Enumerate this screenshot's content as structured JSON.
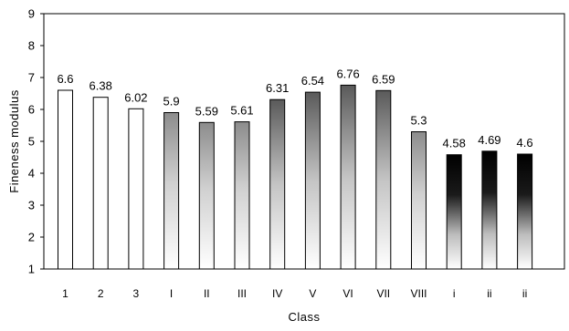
{
  "chart_data": {
    "type": "bar",
    "title": "",
    "xlabel": "Class",
    "ylabel": "Fineness modulus",
    "ylim": [
      1,
      9
    ],
    "yticks": [
      1,
      2,
      3,
      4,
      5,
      6,
      7,
      8,
      9
    ],
    "grid": false,
    "legend": "none",
    "categories": [
      "1",
      "2",
      "3",
      "I",
      "II",
      "III",
      "IV",
      "V",
      "VI",
      "VII",
      "VIII",
      "i",
      "ii",
      "ii"
    ],
    "values": [
      6.6,
      6.38,
      6.02,
      5.9,
      5.59,
      5.61,
      6.31,
      6.54,
      6.76,
      6.59,
      5.3,
      4.58,
      4.69,
      4.6
    ],
    "value_labels": [
      "6.6",
      "6.38",
      "6.02",
      "5.9",
      "5.59",
      "5.61",
      "6.31",
      "6.54",
      "6.76",
      "6.59",
      "5.3",
      "4.58",
      "4.69",
      "4.6"
    ],
    "bar_fill_styles": [
      "white",
      "white",
      "white",
      "light-gradient",
      "light-gradient",
      "light-gradient",
      "medium-gradient",
      "medium-gradient",
      "medium-gradient",
      "medium-gradient",
      "light-gradient",
      "dark-gradient",
      "dark-gradient",
      "dark-gradient"
    ],
    "colors": {
      "stroke": "#000000",
      "bar_white": "#ffffff",
      "gradient_light_top": "#8c8c8c",
      "gradient_medium_top": "#6a6a6a",
      "gradient_dark_top": "#000000",
      "gradient_bottom": "#ffffff"
    }
  }
}
